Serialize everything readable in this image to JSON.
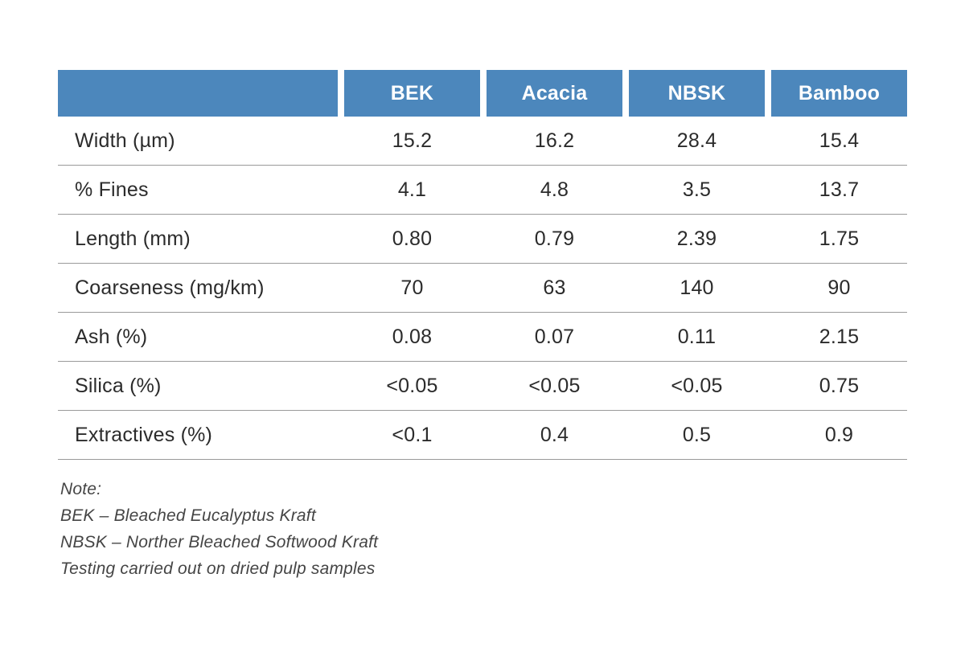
{
  "colors": {
    "header_bg": "#4C87BC",
    "header_text": "#FFFFFF",
    "body_text": "#2B2B2B",
    "note_text": "#454545",
    "divider": "#9A9A9A",
    "page_bg": "#FFFFFF"
  },
  "table": {
    "columns": [
      "BEK",
      "Acacia",
      "NBSK",
      "Bamboo"
    ],
    "rows": [
      {
        "label": "Width (µm)",
        "values": [
          "15.2",
          "16.2",
          "28.4",
          "15.4"
        ]
      },
      {
        "label": "% Fines",
        "values": [
          "4.1",
          "4.8",
          "3.5",
          "13.7"
        ]
      },
      {
        "label": "Length (mm)",
        "values": [
          "0.80",
          "0.79",
          "2.39",
          "1.75"
        ]
      },
      {
        "label": "Coarseness (mg/km)",
        "values": [
          "70",
          "63",
          "140",
          "90"
        ]
      },
      {
        "label": "Ash (%)",
        "values": [
          "0.08",
          "0.07",
          "0.11",
          "2.15"
        ]
      },
      {
        "label": "Silica (%)",
        "values": [
          "<0.05",
          "<0.05",
          "<0.05",
          "0.75"
        ]
      },
      {
        "label": "Extractives (%)",
        "values": [
          "<0.1",
          "0.4",
          "0.5",
          "0.9"
        ]
      }
    ]
  },
  "note": {
    "lines": [
      "Note:",
      "BEK – Bleached Eucalyptus Kraft",
      "NBSK – Norther Bleached Softwood Kraft",
      "Testing carried out on dried pulp samples"
    ]
  },
  "chart_data": {
    "type": "table",
    "title": "",
    "columns": [
      "",
      "BEK",
      "Acacia",
      "NBSK",
      "Bamboo"
    ],
    "rows": [
      [
        "Width (µm)",
        "15.2",
        "16.2",
        "28.4",
        "15.4"
      ],
      [
        "% Fines",
        "4.1",
        "4.8",
        "3.5",
        "13.7"
      ],
      [
        "Length (mm)",
        "0.80",
        "0.79",
        "2.39",
        "1.75"
      ],
      [
        "Coarseness (mg/km)",
        "70",
        "63",
        "140",
        "90"
      ],
      [
        "Ash (%)",
        "0.08",
        "0.07",
        "0.11",
        "2.15"
      ],
      [
        "Silica (%)",
        "<0.05",
        "<0.05",
        "<0.05",
        "0.75"
      ],
      [
        "Extractives (%)",
        "<0.1",
        "0.4",
        "0.5",
        "0.9"
      ]
    ],
    "annotations": [
      "Note:",
      "BEK – Bleached Eucalyptus Kraft",
      "NBSK – Norther Bleached Softwood Kraft",
      "Testing carried out on dried pulp samples"
    ],
    "layout_hints": {
      "header_style": "blue-filled cells with white gaps between columns",
      "row_dividers": "thin gray horizontal lines, no vertical lines in body",
      "value_alignment": "center",
      "label_alignment": "left"
    }
  }
}
